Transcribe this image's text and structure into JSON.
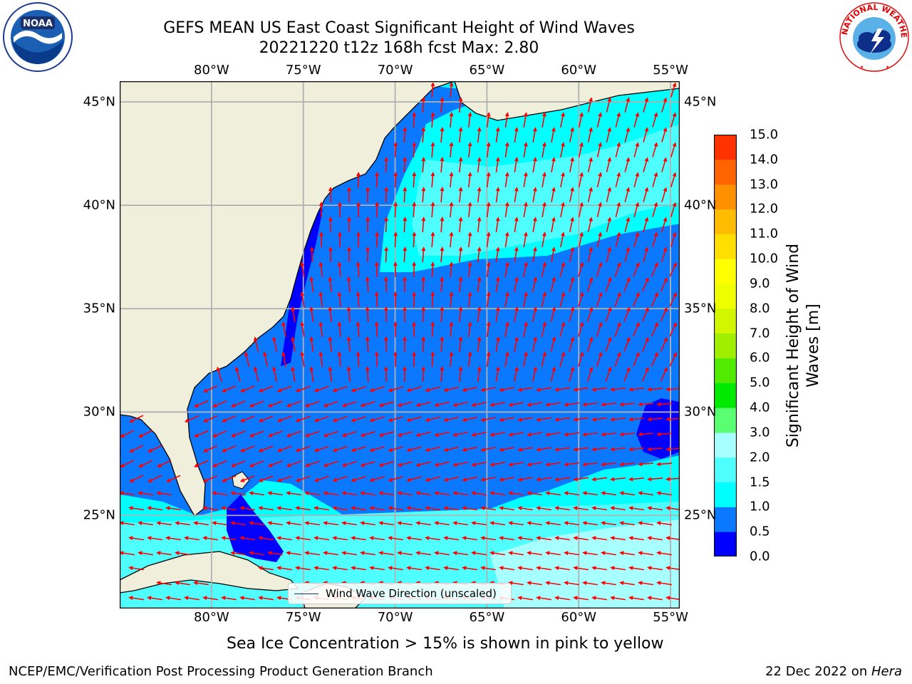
{
  "title": {
    "line1": "GEFS MEAN US East Coast Significant Height of Wind Waves",
    "line2": "20221220 t12z 168h fcst   Max: 2.80"
  },
  "logos": {
    "left": "NOAA",
    "right": "NATIONAL WEATHER SERVICE"
  },
  "map": {
    "lon_labels": [
      "80°W",
      "75°W",
      "70°W",
      "65°W",
      "60°W",
      "55°W"
    ],
    "lat_labels": [
      "45°N",
      "40°N",
      "35°N",
      "30°N",
      "25°N"
    ],
    "lon_range": [
      -85,
      -54.5
    ],
    "lat_range": [
      20.5,
      46
    ],
    "legend_label": "Wind Wave Direction (unscaled)",
    "colors": {
      "land": "#efefdc",
      "grid": "#b0b0b0",
      "arrow": "#ff0000",
      "band_0_0.5": "#0000ff",
      "band_0.5_1": "#0a78ff",
      "band_1_1.5": "#00ffff",
      "band_1.5_2": "#4fffff",
      "band_2_3": "#a7ffff"
    }
  },
  "colorbar": {
    "title": "Significant Height of Wind Waves [m]",
    "ticks": [
      "15.0",
      "14.0",
      "13.0",
      "12.0",
      "11.0",
      "10.0",
      "9.0",
      "8.0",
      "7.0",
      "6.0",
      "5.0",
      "4.0",
      "3.0",
      "2.0",
      "1.5",
      "1.0",
      "0.5",
      "0.0"
    ],
    "colors": [
      "#0000ff",
      "#0a78ff",
      "#00ffff",
      "#4fffff",
      "#a7ffff",
      "#59ff70",
      "#00ea00",
      "#51ea00",
      "#a0ef00",
      "#d2f500",
      "#f0ff00",
      "#ffff00",
      "#ffde00",
      "#ffbc00",
      "#ff9000",
      "#ff6400",
      "#ff3200",
      "#ff0000"
    ]
  },
  "ice_note": "Sea Ice Concentration > 15% is shown in pink to yellow",
  "footer": {
    "left": "NCEP/EMC/Verification Post Processing Product Generation Branch",
    "right_prefix": "22 Dec 2022 on ",
    "right_host": "Hera"
  }
}
